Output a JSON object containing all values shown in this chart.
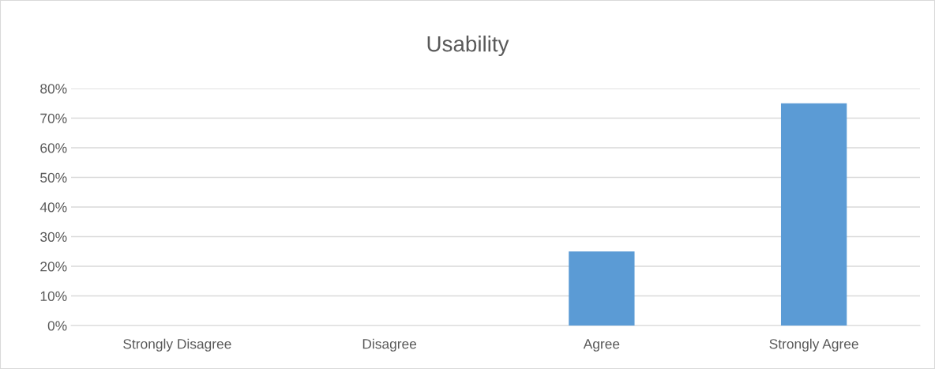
{
  "chart_data": {
    "type": "bar",
    "title": "Usability",
    "categories": [
      "Strongly Disagree",
      "Disagree",
      "Agree",
      "Strongly Agree"
    ],
    "values": [
      0,
      0,
      25,
      75
    ],
    "color": "#5b9bd5",
    "ylim": [
      0,
      80
    ],
    "yticks": [
      {
        "value": 0,
        "label": "0%"
      },
      {
        "value": 10,
        "label": "10%"
      },
      {
        "value": 20,
        "label": "20%"
      },
      {
        "value": 30,
        "label": "30%"
      },
      {
        "value": 40,
        "label": "40%"
      },
      {
        "value": 50,
        "label": "50%"
      },
      {
        "value": 60,
        "label": "60%"
      },
      {
        "value": 70,
        "label": "70%"
      },
      {
        "value": 80,
        "label": "80%"
      }
    ],
    "grid": "y",
    "legend": false
  }
}
